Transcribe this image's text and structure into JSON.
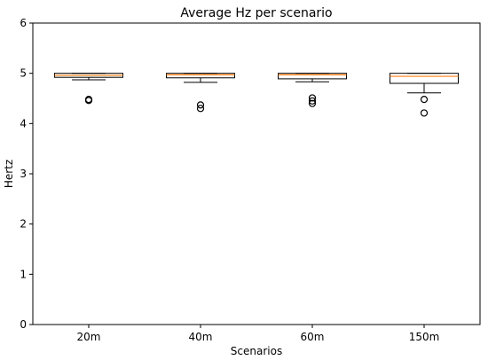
{
  "chart_data": {
    "type": "box",
    "title": "Average Hz per scenario",
    "xlabel": "Scenarios",
    "ylabel": "Hertz",
    "ylim": [
      0,
      6
    ],
    "yticks": [
      "0",
      "1",
      "2",
      "3",
      "4",
      "5",
      "6"
    ],
    "categories": [
      "20m",
      "40m",
      "60m",
      "150m"
    ],
    "grid": false,
    "boxes": [
      {
        "category": "20m",
        "whisker_low": 4.87,
        "q1": 4.92,
        "median": 4.96,
        "q3": 5.0,
        "whisker_high": 5.0,
        "outliers": [
          4.46,
          4.48
        ]
      },
      {
        "category": "40m",
        "whisker_low": 4.82,
        "q1": 4.91,
        "median": 4.97,
        "q3": 5.0,
        "whisker_high": 5.0,
        "outliers": [
          4.3,
          4.37
        ]
      },
      {
        "category": "60m",
        "whisker_low": 4.83,
        "q1": 4.89,
        "median": 4.97,
        "q3": 5.0,
        "whisker_high": 5.0,
        "outliers": [
          4.4,
          4.45,
          4.51
        ]
      },
      {
        "category": "150m",
        "whisker_low": 4.61,
        "q1": 4.8,
        "median": 4.94,
        "q3": 5.0,
        "whisker_high": 5.0,
        "outliers": [
          4.21,
          4.48
        ]
      }
    ],
    "colors": {
      "box": "#000000",
      "median": "#ff7f0e",
      "outlier": "#000000",
      "axes": "#000000"
    }
  }
}
